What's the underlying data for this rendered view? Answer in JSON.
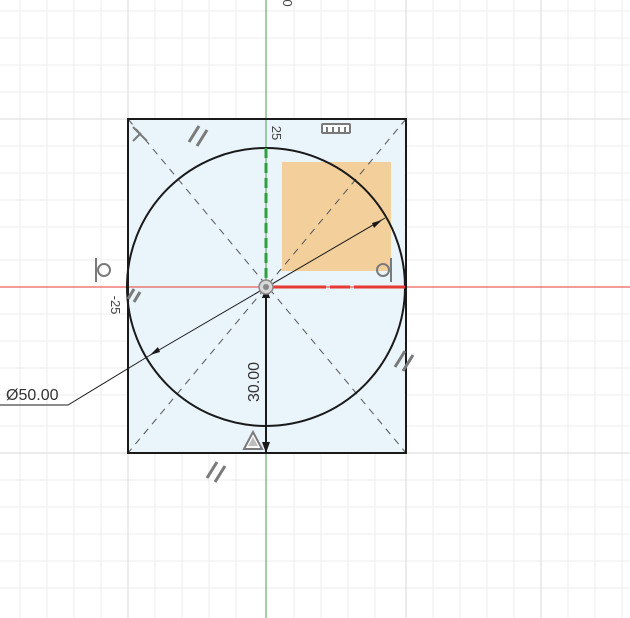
{
  "sketch": {
    "dimensions": {
      "diameter_label": "Ø50.00",
      "vertical_label": "30.00",
      "axis_top_label": "25",
      "axis_left_label": "-25"
    },
    "colors": {
      "grid_minor": "#eeeeee",
      "grid_major": "#dddddd",
      "x_axis": "#e53935",
      "y_axis": "#43a047",
      "profile_fill": "#eaf4fb",
      "selection_fill": "#f5c98a",
      "sketch_line": "#1a1a1a",
      "constraint_icon": "#777777"
    },
    "icons": {
      "parallel": "parallel-constraint-icon",
      "perpendicular": "perpendicular-constraint-icon",
      "horizontal": "horizontal-constraint-icon",
      "tangent": "tangent-constraint-icon",
      "fix": "fix-constraint-icon"
    }
  }
}
